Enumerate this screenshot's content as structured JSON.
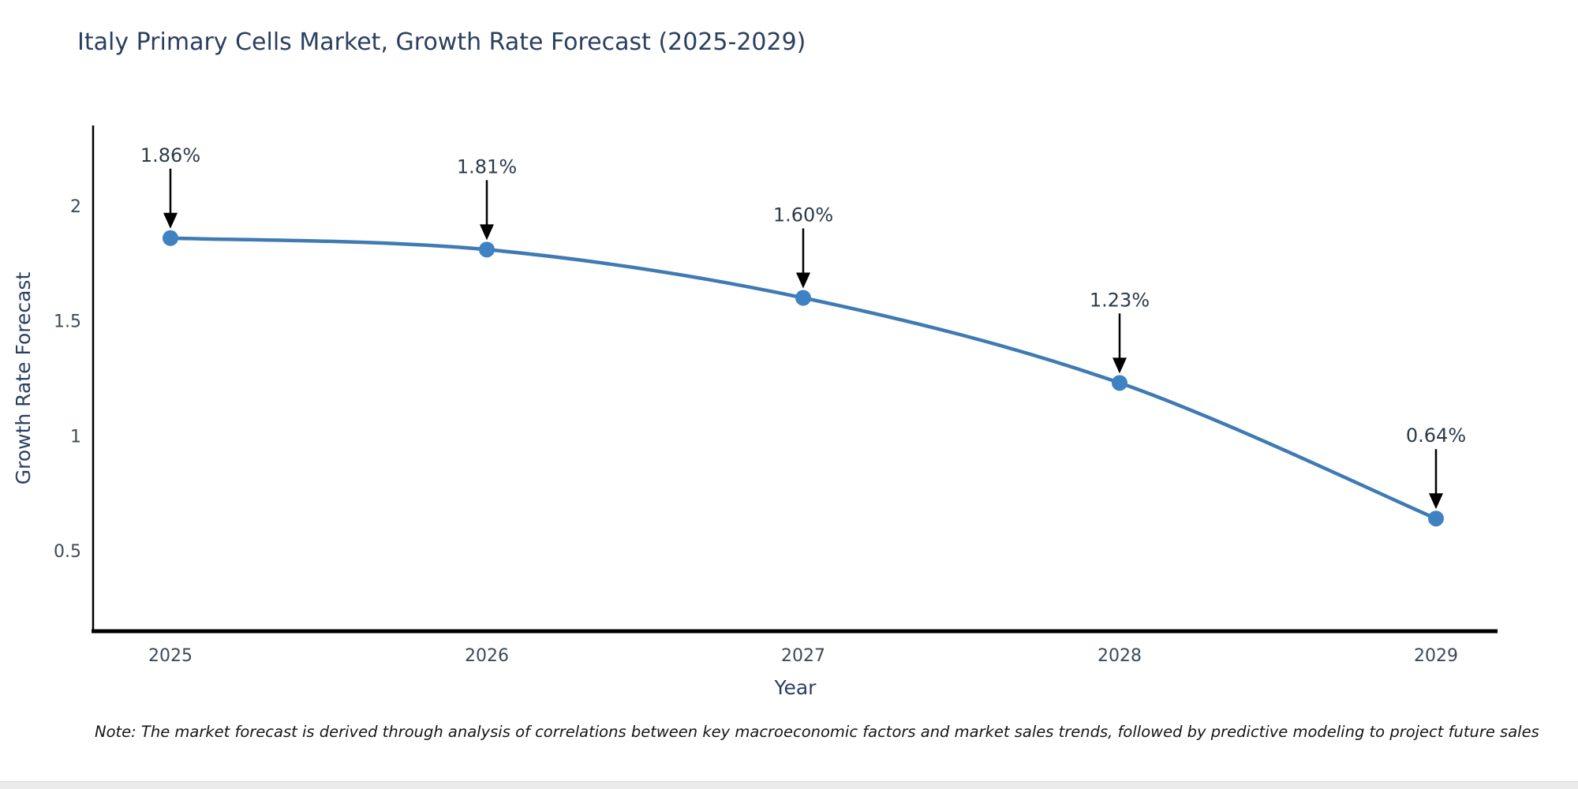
{
  "title": "Italy Primary Cells Market, Growth Rate Forecast (2025-2029)",
  "note": "Note: The market forecast is derived through analysis of correlations between key macroeconomic factors and market sales trends, followed by predictive modeling to project future sales",
  "chart_data": {
    "type": "line",
    "title": "Italy Primary Cells Market, Growth Rate Forecast (2025-2029)",
    "xlabel": "Year",
    "ylabel": "Growth Rate Forecast",
    "x": [
      "2025",
      "2026",
      "2027",
      "2028",
      "2029"
    ],
    "series": [
      {
        "name": "Growth Rate Forecast",
        "values": [
          1.86,
          1.81,
          1.6,
          1.23,
          0.64
        ]
      }
    ],
    "point_labels": [
      "1.86%",
      "1.81%",
      "1.60%",
      "1.23%",
      "0.64%"
    ],
    "yticks": [
      0.5,
      1,
      1.5,
      2
    ],
    "ylim": [
      0.15,
      2.35
    ],
    "grid": false,
    "legend": "none",
    "line_shape": "spline",
    "colors": {
      "line": "#3f7ab3",
      "marker": "#3f82c4",
      "axis": "#000000",
      "title_text": "#2a3f5f",
      "tick_text": "#3b4a5a",
      "annotation_text": "#2c3a4a",
      "annotation_arrow": "#000000",
      "note_text": "#151515"
    }
  }
}
